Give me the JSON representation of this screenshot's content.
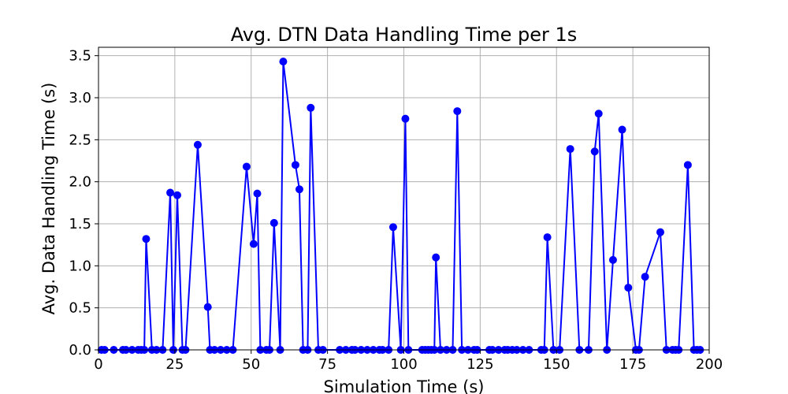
{
  "chart_data": {
    "type": "line",
    "title": "Avg. DTN Data Handling Time per 1s",
    "xlabel": "Simulation Time (s)",
    "ylabel": "Avg. Data Handling Time (s)",
    "xlim": [
      0,
      200
    ],
    "ylim": [
      0,
      3.6
    ],
    "xticks": [
      0,
      25,
      50,
      75,
      100,
      125,
      150,
      175,
      200
    ],
    "xtick_labels": [
      "0",
      "25",
      "50",
      "75",
      "100",
      "125",
      "150",
      "175",
      "200"
    ],
    "yticks": [
      0.0,
      0.5,
      1.0,
      1.5,
      2.0,
      2.5,
      3.0,
      3.5
    ],
    "ytick_labels": [
      "0.0",
      "0.5",
      "1.0",
      "1.5",
      "2.0",
      "2.5",
      "3.0",
      "3.5"
    ],
    "grid": true,
    "legend": "none",
    "series": [
      {
        "color": "#0000ff",
        "marker": "circle",
        "x": [
          1,
          2,
          5,
          8,
          9,
          11,
          13,
          14,
          15,
          15.6,
          17.5,
          19,
          21,
          23.5,
          24.5,
          25.8,
          27.5,
          28.5,
          32.5,
          35.8,
          36.5,
          38,
          40,
          42,
          44,
          48.5,
          50.8,
          52,
          53,
          55,
          56,
          57.5,
          59.5,
          60.5,
          64.5,
          65.8,
          67,
          68.5,
          69.5,
          72,
          73.5,
          79,
          81,
          83,
          84,
          86,
          88,
          90,
          92,
          93,
          95,
          96.5,
          99,
          100.5,
          101.5,
          106,
          107,
          108,
          109,
          110,
          110.5,
          112,
          114,
          116,
          117.5,
          119,
          121,
          123,
          124,
          128,
          129,
          131,
          133,
          134,
          135.5,
          137,
          139,
          141,
          145,
          146,
          147,
          149,
          151,
          154.5,
          157.5,
          160.5,
          162.5,
          163.8,
          166.5,
          168.5,
          171.5,
          173.5,
          176,
          177,
          179,
          184,
          186,
          188,
          189,
          190,
          193,
          195,
          196,
          197
        ],
        "y": [
          0,
          0,
          0,
          0,
          0,
          0,
          0,
          0,
          0,
          1.32,
          0,
          0,
          0,
          1.87,
          0,
          1.84,
          0,
          0,
          2.44,
          0.51,
          0,
          0,
          0,
          0,
          0,
          2.18,
          1.26,
          1.86,
          0,
          0,
          0,
          1.51,
          0,
          3.43,
          2.2,
          1.91,
          0,
          0,
          2.88,
          0,
          0,
          0,
          0,
          0,
          0,
          0,
          0,
          0,
          0,
          0,
          0,
          1.46,
          0,
          2.75,
          0,
          0,
          0,
          0,
          0,
          0,
          1.1,
          0,
          0,
          0,
          2.84,
          0,
          0,
          0,
          0,
          0,
          0,
          0,
          0,
          0,
          0,
          0,
          0,
          0,
          0,
          0,
          1.34,
          0,
          0,
          2.39,
          0,
          0,
          2.36,
          2.81,
          0,
          1.07,
          2.62,
          0.74,
          0,
          0,
          0.87,
          1.4,
          0,
          0,
          0,
          0,
          2.2,
          0,
          0,
          0
        ]
      }
    ]
  }
}
